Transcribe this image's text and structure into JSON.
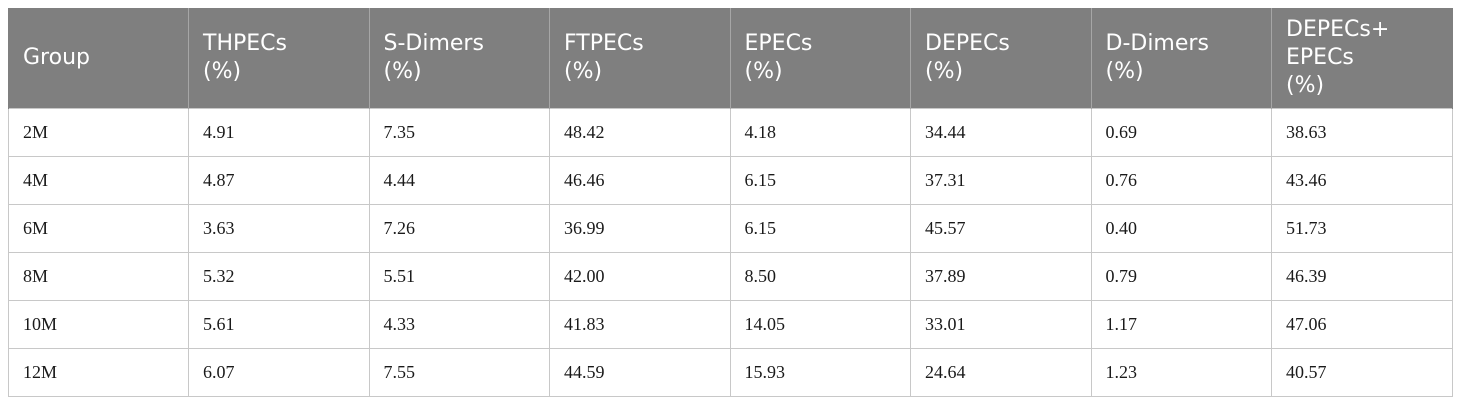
{
  "table": {
    "headers": [
      [
        "Group"
      ],
      [
        "THPECs",
        "(%)"
      ],
      [
        "S-Dimers",
        "(%)"
      ],
      [
        "FTPECs",
        "(%)"
      ],
      [
        "EPECs",
        "(%)"
      ],
      [
        "DEPECs",
        "(%)"
      ],
      [
        "D-Dimers",
        "(%)"
      ],
      [
        "DEPECs+",
        "EPECs",
        "(%)"
      ]
    ],
    "rows": [
      [
        "2M",
        "4.91",
        "7.35",
        "48.42",
        "4.18",
        "34.44",
        "0.69",
        "38.63"
      ],
      [
        "4M",
        "4.87",
        "4.44",
        "46.46",
        "6.15",
        "37.31",
        "0.76",
        "43.46"
      ],
      [
        "6M",
        "3.63",
        "7.26",
        "36.99",
        "6.15",
        "45.57",
        "0.40",
        "51.73"
      ],
      [
        "8M",
        "5.32",
        "5.51",
        "42.00",
        "8.50",
        "37.89",
        "0.79",
        "46.39"
      ],
      [
        "10M",
        "5.61",
        "4.33",
        "41.83",
        "14.05",
        "33.01",
        "1.17",
        "47.06"
      ],
      [
        "12M",
        "6.07",
        "7.55",
        "44.59",
        "15.93",
        "24.64",
        "1.23",
        "40.57"
      ]
    ]
  },
  "colors": {
    "header_background": "#7f7f7f",
    "header_text": "#ffffff",
    "border": "#c8c8c8"
  }
}
